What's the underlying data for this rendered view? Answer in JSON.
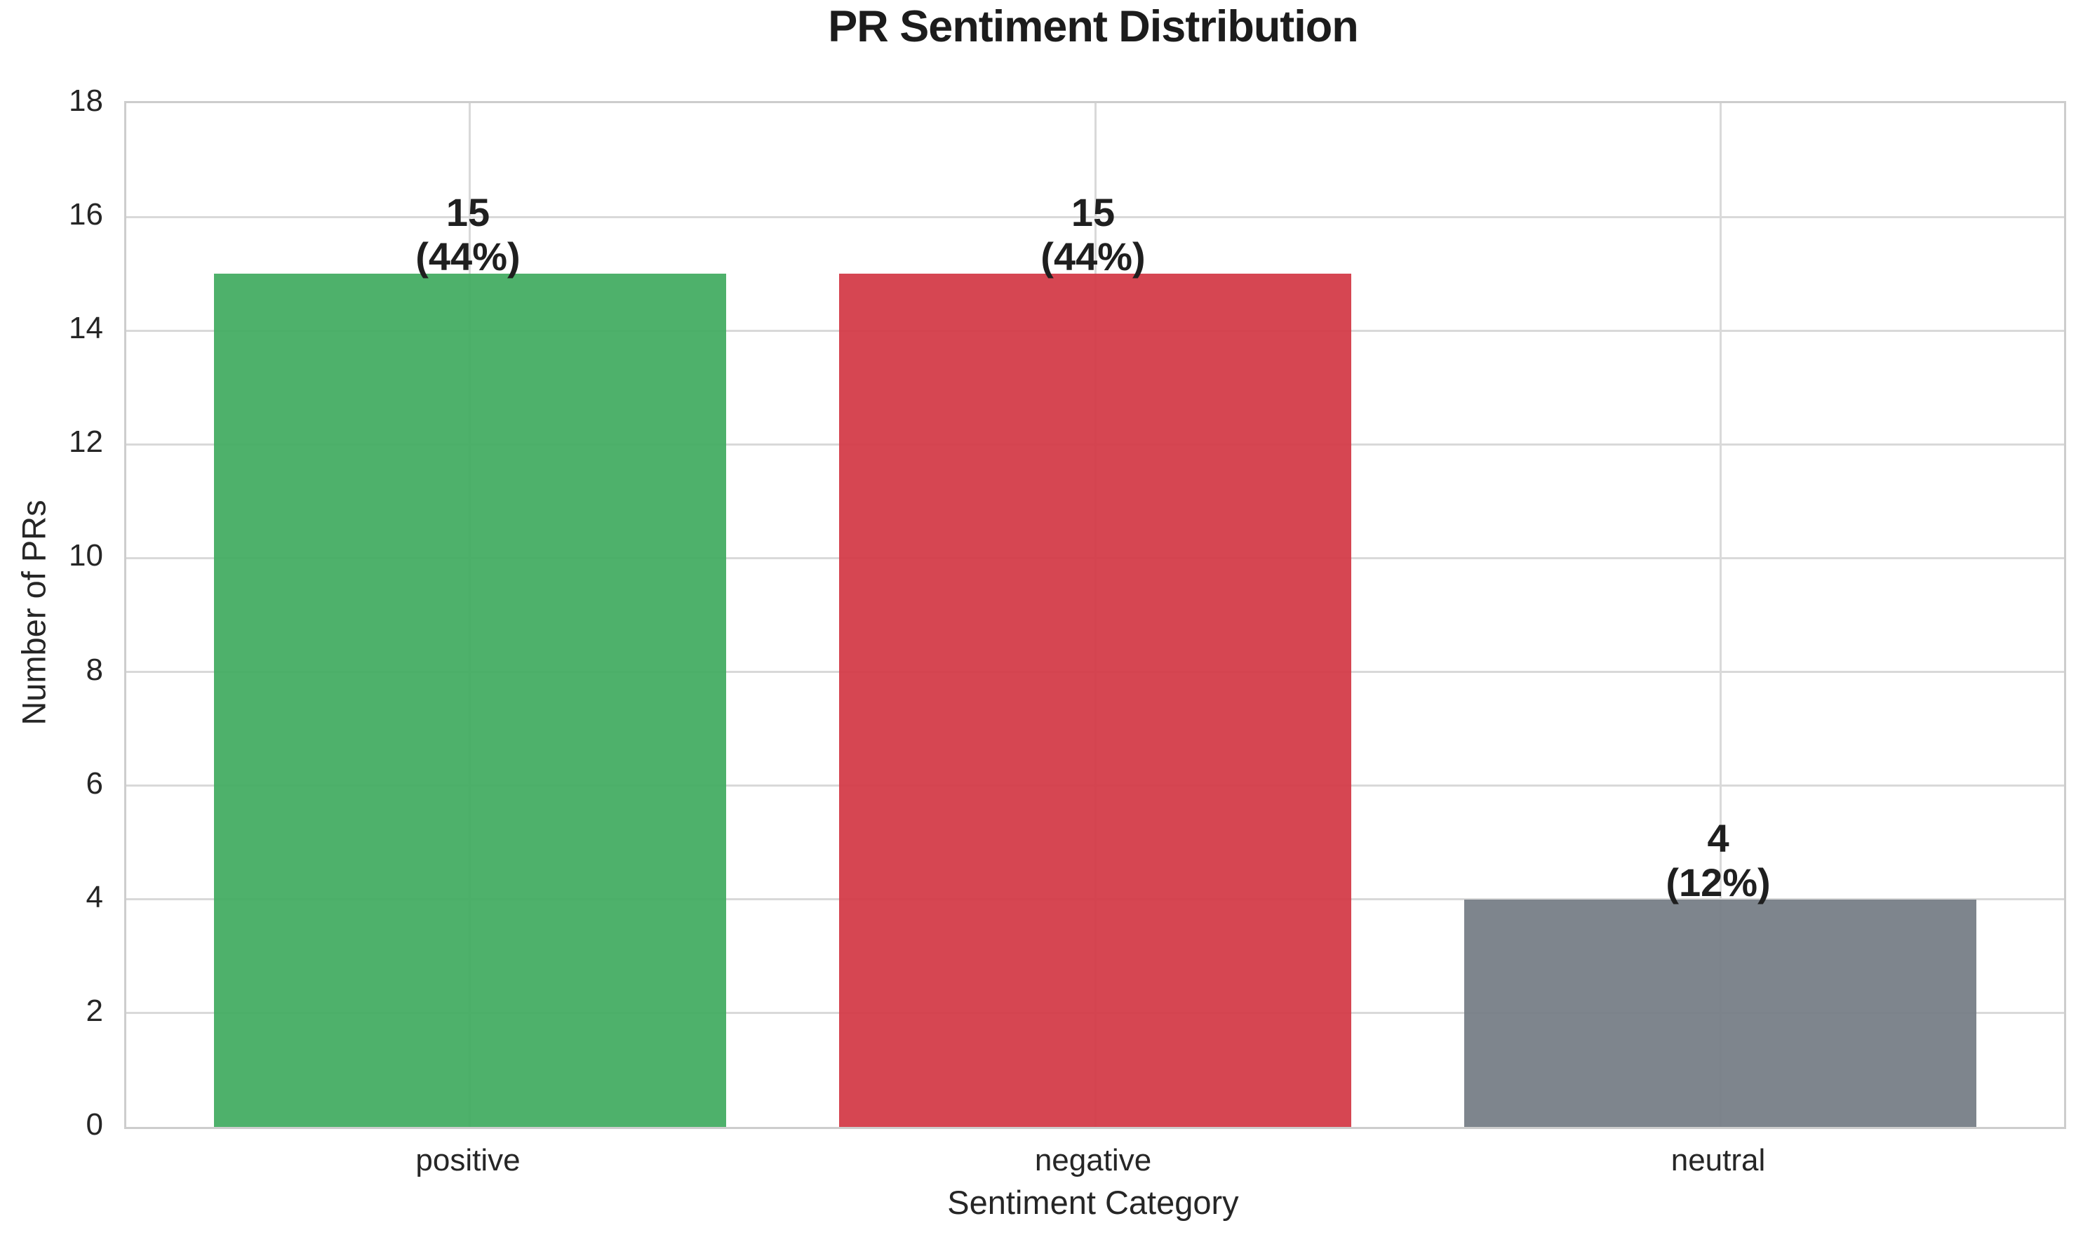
{
  "chart_data": {
    "type": "bar",
    "title": "PR Sentiment Distribution",
    "xlabel": "Sentiment Category",
    "ylabel": "Number of PRs",
    "categories": [
      "positive",
      "negative",
      "neutral"
    ],
    "values": [
      15,
      15,
      4
    ],
    "value_labels": [
      "15",
      "15",
      "4"
    ],
    "percent_labels": [
      "(44%)",
      "(44%)",
      "(12%)"
    ],
    "bar_colors": [
      "#41AB60",
      "#D33845",
      "#747C84"
    ],
    "ylim": [
      0,
      18
    ],
    "yticks": [
      0,
      2,
      4,
      6,
      8,
      10,
      12,
      14,
      16,
      18
    ],
    "grid": true,
    "legend": "none",
    "style": {
      "background": "#ffffff",
      "grid_color": "#d9d9d9",
      "spine_color": "#cdcdcd",
      "text_color": "#262626",
      "title_color": "#1c1c1c"
    }
  }
}
